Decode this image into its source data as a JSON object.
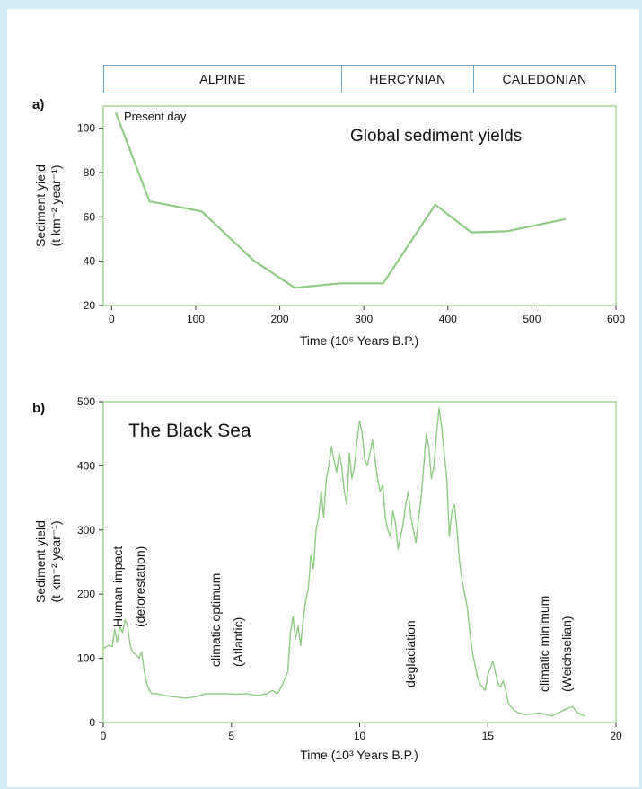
{
  "eras": [
    {
      "label": "ALPINE"
    },
    {
      "label": "HERCYNIAN"
    },
    {
      "label": "CALEDONIAN"
    }
  ],
  "chart_data": [
    {
      "type": "line",
      "panel_label": "a)",
      "title": "Global sediment yields",
      "annotation": "Present day",
      "xlabel": "Time (10⁶ Years B.P.)",
      "ylabel_line1": "Sediment yield",
      "ylabel_line2": "(t km⁻² year⁻¹)",
      "xlim": [
        -10,
        600
      ],
      "ylim": [
        20,
        110
      ],
      "xticks": [
        0,
        100,
        200,
        300,
        400,
        500,
        600
      ],
      "yticks": [
        20,
        40,
        60,
        80,
        100
      ],
      "x": [
        5,
        45,
        107,
        170,
        218,
        272,
        323,
        385,
        428,
        470,
        540
      ],
      "y": [
        107,
        67,
        62.5,
        40,
        28,
        30,
        30,
        65.5,
        53,
        53.5,
        59
      ],
      "color": "#8fcc83"
    },
    {
      "type": "line",
      "panel_label": "b)",
      "title": "The Black Sea",
      "xlabel": "Time (10³ Years B.P.)",
      "ylabel_line1": "Sediment yield",
      "ylabel_line2": "(t km⁻² year⁻¹)",
      "xlim": [
        0,
        20
      ],
      "ylim": [
        0,
        500
      ],
      "xticks": [
        0,
        5,
        10,
        15,
        20
      ],
      "yticks": [
        0,
        100,
        200,
        300,
        400,
        500
      ],
      "x": [
        0,
        0.2,
        0.35,
        0.45,
        0.55,
        0.65,
        0.75,
        0.85,
        0.95,
        1.05,
        1.15,
        1.3,
        1.4,
        1.5,
        1.6,
        1.7,
        1.8,
        1.9,
        2.1,
        2.4,
        2.8,
        3.2,
        3.6,
        4.0,
        4.4,
        4.8,
        5.2,
        5.6,
        6.0,
        6.4,
        6.6,
        6.8,
        7.0,
        7.2,
        7.3,
        7.4,
        7.5,
        7.6,
        7.7,
        7.8,
        7.9,
        8.0,
        8.1,
        8.2,
        8.3,
        8.4,
        8.5,
        8.6,
        8.7,
        8.8,
        8.9,
        9.0,
        9.1,
        9.2,
        9.3,
        9.4,
        9.5,
        9.6,
        9.7,
        9.8,
        9.9,
        10.0,
        10.1,
        10.2,
        10.3,
        10.4,
        10.5,
        10.6,
        10.7,
        10.8,
        10.9,
        11.0,
        11.1,
        11.2,
        11.3,
        11.4,
        11.5,
        11.6,
        11.7,
        11.8,
        11.9,
        12.0,
        12.1,
        12.2,
        12.3,
        12.4,
        12.5,
        12.6,
        12.7,
        12.8,
        12.9,
        13.0,
        13.1,
        13.2,
        13.3,
        13.4,
        13.5,
        13.6,
        13.7,
        13.8,
        13.9,
        14.0,
        14.1,
        14.2,
        14.3,
        14.4,
        14.5,
        14.6,
        14.7,
        14.8,
        14.9,
        15.0,
        15.2,
        15.4,
        15.5,
        15.6,
        15.7,
        15.8,
        15.9,
        16.0,
        16.2,
        16.5,
        17.0,
        17.5,
        18.0,
        18.3,
        18.5,
        18.8
      ],
      "y": [
        115,
        120,
        118,
        145,
        125,
        150,
        140,
        160,
        150,
        120,
        110,
        105,
        100,
        110,
        80,
        60,
        50,
        45,
        45,
        42,
        40,
        38,
        40,
        45,
        45,
        45,
        44,
        45,
        42,
        45,
        50,
        45,
        60,
        80,
        140,
        165,
        130,
        150,
        120,
        160,
        190,
        210,
        260,
        240,
        300,
        320,
        360,
        320,
        380,
        400,
        430,
        410,
        390,
        420,
        400,
        360,
        340,
        420,
        380,
        400,
        440,
        470,
        450,
        410,
        400,
        420,
        440,
        410,
        380,
        360,
        370,
        320,
        300,
        290,
        330,
        310,
        270,
        290,
        310,
        340,
        360,
        320,
        300,
        280,
        320,
        350,
        400,
        450,
        430,
        380,
        400,
        450,
        490,
        460,
        420,
        380,
        290,
        330,
        340,
        300,
        250,
        220,
        200,
        180,
        140,
        110,
        90,
        70,
        60,
        55,
        50,
        75,
        95,
        60,
        55,
        65,
        50,
        30,
        25,
        20,
        15,
        12,
        15,
        10,
        20,
        25,
        15,
        10
      ],
      "color": "#8fcc83",
      "annotations": [
        {
          "line1": "Human impact",
          "line2": "(deforestation)"
        },
        {
          "line1": "climatic optimum",
          "line2": "(Atlantic)"
        },
        {
          "line1": "deglaciation",
          "line2": ""
        },
        {
          "line1": "climatic minimum",
          "line2": "(Weichselian)"
        }
      ]
    }
  ]
}
